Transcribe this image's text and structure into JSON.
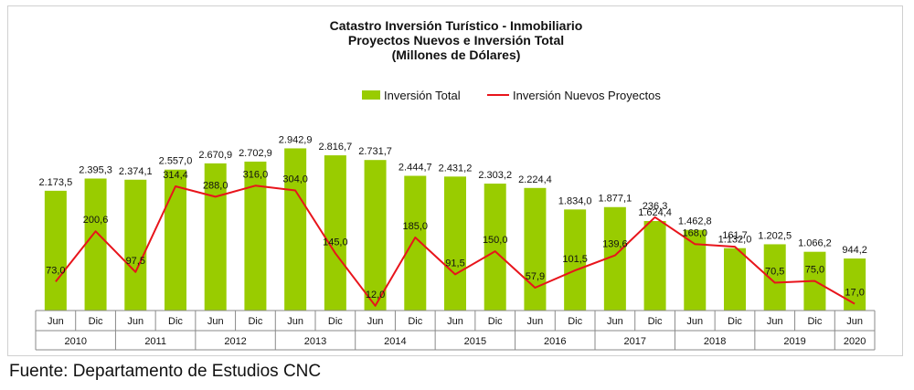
{
  "chart_data": {
    "type": "bar",
    "title_lines": [
      "Catastro Inversión Turístico - Inmobiliario",
      "Proyectos Nuevos e Inversión Total",
      "(Millones de Dólares)"
    ],
    "categories": [
      "Jun",
      "Dic",
      "Jun",
      "Dic",
      "Jun",
      "Dic",
      "Jun",
      "Dic",
      "Jun",
      "Dic",
      "Jun",
      "Dic",
      "Jun",
      "Dic",
      "Jun",
      "Dic",
      "Jun",
      "Dic",
      "Jun",
      "Dic",
      "Jun"
    ],
    "years": [
      {
        "label": "2010",
        "count": 2
      },
      {
        "label": "2011",
        "count": 2
      },
      {
        "label": "2012",
        "count": 2
      },
      {
        "label": "2013",
        "count": 2
      },
      {
        "label": "2014",
        "count": 2
      },
      {
        "label": "2015",
        "count": 2
      },
      {
        "label": "2016",
        "count": 2
      },
      {
        "label": "2017",
        "count": 2
      },
      {
        "label": "2018",
        "count": 2
      },
      {
        "label": "2019",
        "count": 2
      },
      {
        "label": "2020",
        "count": 1
      }
    ],
    "series": [
      {
        "name": "Inversión Total",
        "kind": "bar",
        "color": "#99cc00",
        "values": [
          2173.5,
          2395.3,
          2374.1,
          2557.0,
          2670.9,
          2702.9,
          2942.9,
          2816.7,
          2731.7,
          2444.7,
          2431.2,
          2303.2,
          2224.4,
          1834.0,
          1877.1,
          1624.4,
          1462.8,
          1132.0,
          1202.5,
          1066.2,
          944.2
        ],
        "labels": [
          "2.173,5",
          "2.395,3",
          "2.374,1",
          "2.557,0",
          "2.670,9",
          "2.702,9",
          "2.942,9",
          "2.816,7",
          "2.731,7",
          "2.444,7",
          "2.431,2",
          "2.303,2",
          "2.224,4",
          "1.834,0",
          "1.877,1",
          "1.624,4",
          "1.462,8",
          "1.132,0",
          "1.202,5",
          "1.066,2",
          "944,2"
        ]
      },
      {
        "name": "Inversión Nuevos Proyectos",
        "kind": "line",
        "color": "#e8141b",
        "values": [
          73.0,
          200.6,
          97.5,
          314.4,
          288.0,
          316.0,
          304.0,
          145.0,
          12.0,
          185.0,
          91.5,
          150.0,
          57.9,
          101.5,
          139.6,
          236.3,
          168.0,
          161.7,
          70.5,
          75.0,
          17.0
        ],
        "labels": [
          "73,0",
          "200,6",
          "97,5",
          "314,4",
          "288,0",
          "316,0",
          "304,0",
          "145,0",
          "12,0",
          "185,0",
          "91,5",
          "150,0",
          "57,9",
          "101,5",
          "139,6",
          "236,3",
          "168,0",
          "161,7",
          "70,5",
          "75,0",
          "17,0"
        ]
      }
    ],
    "bar_ylim": [
      0,
      3000
    ],
    "line_ylim": [
      0,
      400
    ],
    "grid": false,
    "legend_position": "top-center"
  },
  "footer": {
    "source": "Fuente: Departamento de Estudios CNC"
  }
}
